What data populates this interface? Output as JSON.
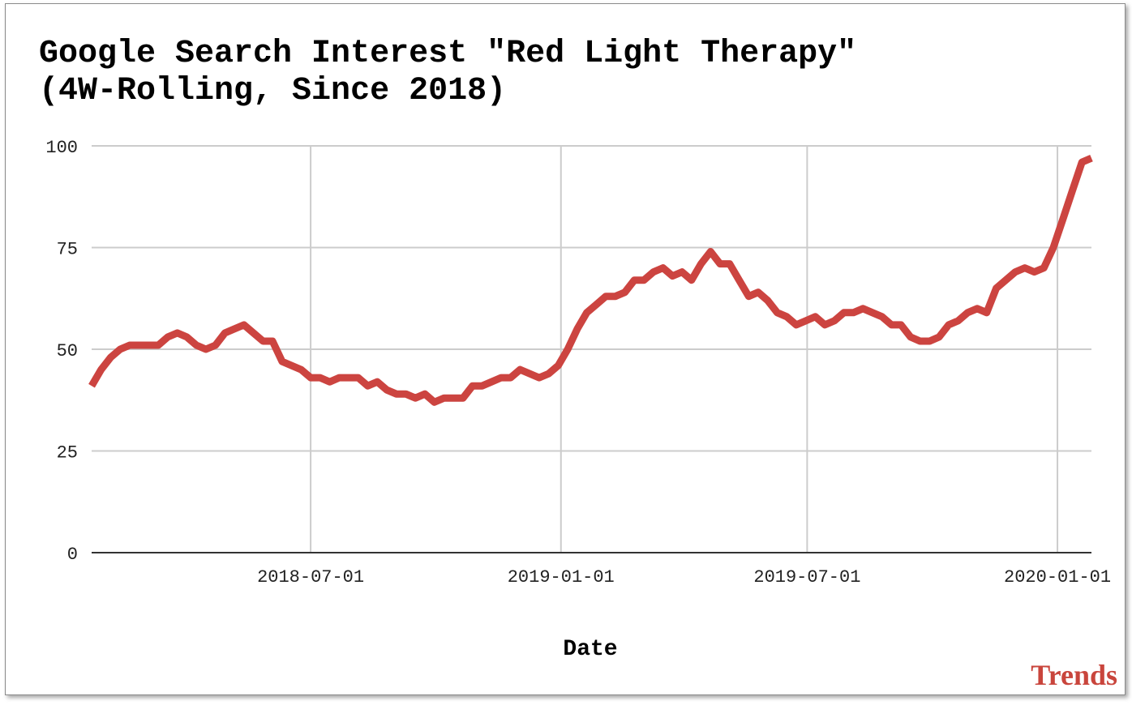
{
  "chart_data": {
    "type": "line",
    "title": "Google Search Interest \"Red Light Therapy\" (4W-Rolling, Since 2018)",
    "title_lines": [
      "Google Search Interest \"Red Light Therapy\"",
      "(4W-Rolling, Since 2018)"
    ],
    "xlabel": "Date",
    "ylabel": "",
    "xlim": [
      "2018-01-21",
      "2020-01-26"
    ],
    "ylim": [
      0,
      100
    ],
    "yticks": [
      0,
      25,
      50,
      75,
      100
    ],
    "xticks": [
      "2018-07-01",
      "2019-01-01",
      "2019-07-01",
      "2020-01-01"
    ],
    "grid": true,
    "legend": "none",
    "line_color": "#cc4440",
    "series": [
      {
        "x": [
          "2018-01-21",
          "2018-01-28",
          "2018-02-04",
          "2018-02-11",
          "2018-02-18",
          "2018-02-25",
          "2018-03-04",
          "2018-03-11",
          "2018-03-18",
          "2018-03-25",
          "2018-04-01",
          "2018-04-08",
          "2018-04-15",
          "2018-04-22",
          "2018-04-29",
          "2018-05-06",
          "2018-05-13",
          "2018-05-20",
          "2018-05-27",
          "2018-06-03",
          "2018-06-10",
          "2018-06-17",
          "2018-06-24",
          "2018-07-01",
          "2018-07-08",
          "2018-07-15",
          "2018-07-22",
          "2018-07-29",
          "2018-08-05",
          "2018-08-12",
          "2018-08-19",
          "2018-08-26",
          "2018-09-02",
          "2018-09-09",
          "2018-09-16",
          "2018-09-23",
          "2018-09-30",
          "2018-10-07",
          "2018-10-14",
          "2018-10-21",
          "2018-10-28",
          "2018-11-04",
          "2018-11-11",
          "2018-11-18",
          "2018-11-25",
          "2018-12-02",
          "2018-12-09",
          "2018-12-16",
          "2018-12-23",
          "2018-12-30",
          "2019-01-06",
          "2019-01-13",
          "2019-01-20",
          "2019-01-27",
          "2019-02-03",
          "2019-02-10",
          "2019-02-17",
          "2019-02-24",
          "2019-03-03",
          "2019-03-10",
          "2019-03-17",
          "2019-03-24",
          "2019-03-31",
          "2019-04-07",
          "2019-04-14",
          "2019-04-21",
          "2019-04-28",
          "2019-05-05",
          "2019-05-12",
          "2019-05-19",
          "2019-05-26",
          "2019-06-02",
          "2019-06-09",
          "2019-06-16",
          "2019-06-23",
          "2019-06-30",
          "2019-07-07",
          "2019-07-14",
          "2019-07-21",
          "2019-07-28",
          "2019-08-04",
          "2019-08-11",
          "2019-08-18",
          "2019-08-25",
          "2019-09-01",
          "2019-09-08",
          "2019-09-15",
          "2019-09-22",
          "2019-09-29",
          "2019-10-06",
          "2019-10-13",
          "2019-10-20",
          "2019-10-27",
          "2019-11-03",
          "2019-11-10",
          "2019-11-17",
          "2019-11-24",
          "2019-12-01",
          "2019-12-08",
          "2019-12-15",
          "2019-12-22",
          "2019-12-29",
          "2020-01-05",
          "2020-01-12",
          "2020-01-19",
          "2020-01-26"
        ],
        "values": [
          41,
          45,
          48,
          50,
          51,
          51,
          51,
          51,
          53,
          54,
          53,
          51,
          50,
          51,
          54,
          55,
          56,
          54,
          52,
          52,
          47,
          46,
          45,
          43,
          43,
          42,
          43,
          43,
          43,
          41,
          42,
          40,
          39,
          39,
          38,
          39,
          37,
          38,
          38,
          38,
          41,
          41,
          42,
          43,
          43,
          45,
          44,
          43,
          44,
          46,
          50,
          55,
          59,
          61,
          63,
          63,
          64,
          67,
          67,
          69,
          70,
          68,
          69,
          67,
          71,
          74,
          71,
          71,
          67,
          63,
          64,
          62,
          59,
          58,
          56,
          57,
          58,
          56,
          57,
          59,
          59,
          60,
          59,
          58,
          56,
          56,
          53,
          52,
          52,
          53,
          56,
          57,
          59,
          60,
          59,
          65,
          67,
          69,
          70,
          69,
          70,
          75,
          82,
          89,
          96,
          97
        ]
      }
    ]
  },
  "brand": {
    "text": "Trends"
  }
}
